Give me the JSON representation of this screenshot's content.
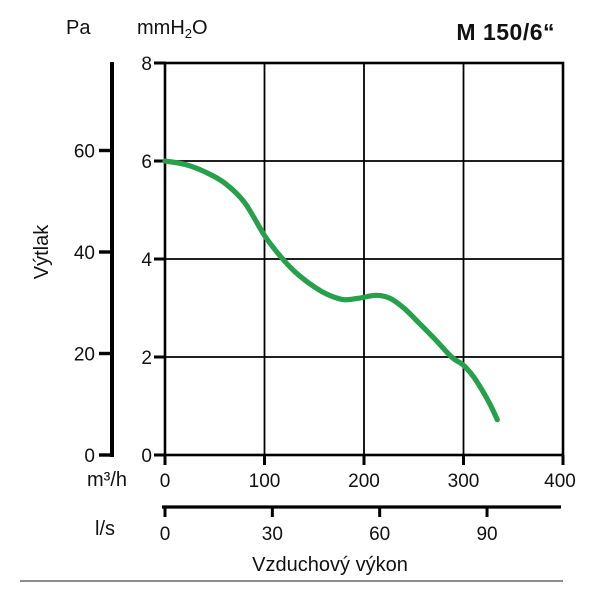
{
  "header": {
    "pa_unit": "Pa",
    "mmh2o_pre": "mmH",
    "mmh2o_sub": "2",
    "mmh2o_post": "O",
    "title": "M 150/6“"
  },
  "labels": {
    "y_axis_title": "Výtlak",
    "x_axis_title": "Vzduchový výkon",
    "m3h_unit": "m³/h",
    "ls_unit": "l/s"
  },
  "colors": {
    "curve": "#27a04c",
    "axis": "#000000",
    "separator": "#8c8c8c"
  },
  "chart_data": {
    "type": "line",
    "title": "M 150/6“",
    "xlabel": "Vzduchový výkon",
    "ylabel": "Výtlak",
    "legend": "none",
    "grid": true,
    "axes": {
      "y_mmh2o": {
        "unit": "mmH2O",
        "ticks": [
          0,
          2,
          4,
          6,
          8
        ],
        "range": [
          0,
          8
        ]
      },
      "y_pa": {
        "unit": "Pa",
        "ticks": [
          0,
          20,
          40,
          60
        ]
      },
      "x_m3h": {
        "unit": "m³/h",
        "ticks": [
          0,
          100,
          200,
          300,
          400
        ],
        "range": [
          0,
          400
        ]
      },
      "x_ls": {
        "unit": "l/s",
        "ticks": [
          0,
          30,
          60,
          90
        ]
      }
    },
    "series": [
      {
        "name": "M 150/6“",
        "color": "#27a04c",
        "x_unit": "m³/h",
        "y_unit": "mmH2O",
        "points": [
          [
            0,
            6.0
          ],
          [
            20,
            5.93
          ],
          [
            40,
            5.78
          ],
          [
            60,
            5.55
          ],
          [
            80,
            5.15
          ],
          [
            100,
            4.48
          ],
          [
            115,
            4.08
          ],
          [
            130,
            3.75
          ],
          [
            150,
            3.43
          ],
          [
            165,
            3.26
          ],
          [
            180,
            3.17
          ],
          [
            195,
            3.2
          ],
          [
            212,
            3.26
          ],
          [
            226,
            3.2
          ],
          [
            240,
            3.0
          ],
          [
            256,
            2.68
          ],
          [
            272,
            2.35
          ],
          [
            288,
            2.0
          ],
          [
            300,
            1.83
          ],
          [
            310,
            1.6
          ],
          [
            320,
            1.28
          ],
          [
            328,
            0.98
          ],
          [
            334,
            0.72
          ]
        ]
      }
    ]
  }
}
